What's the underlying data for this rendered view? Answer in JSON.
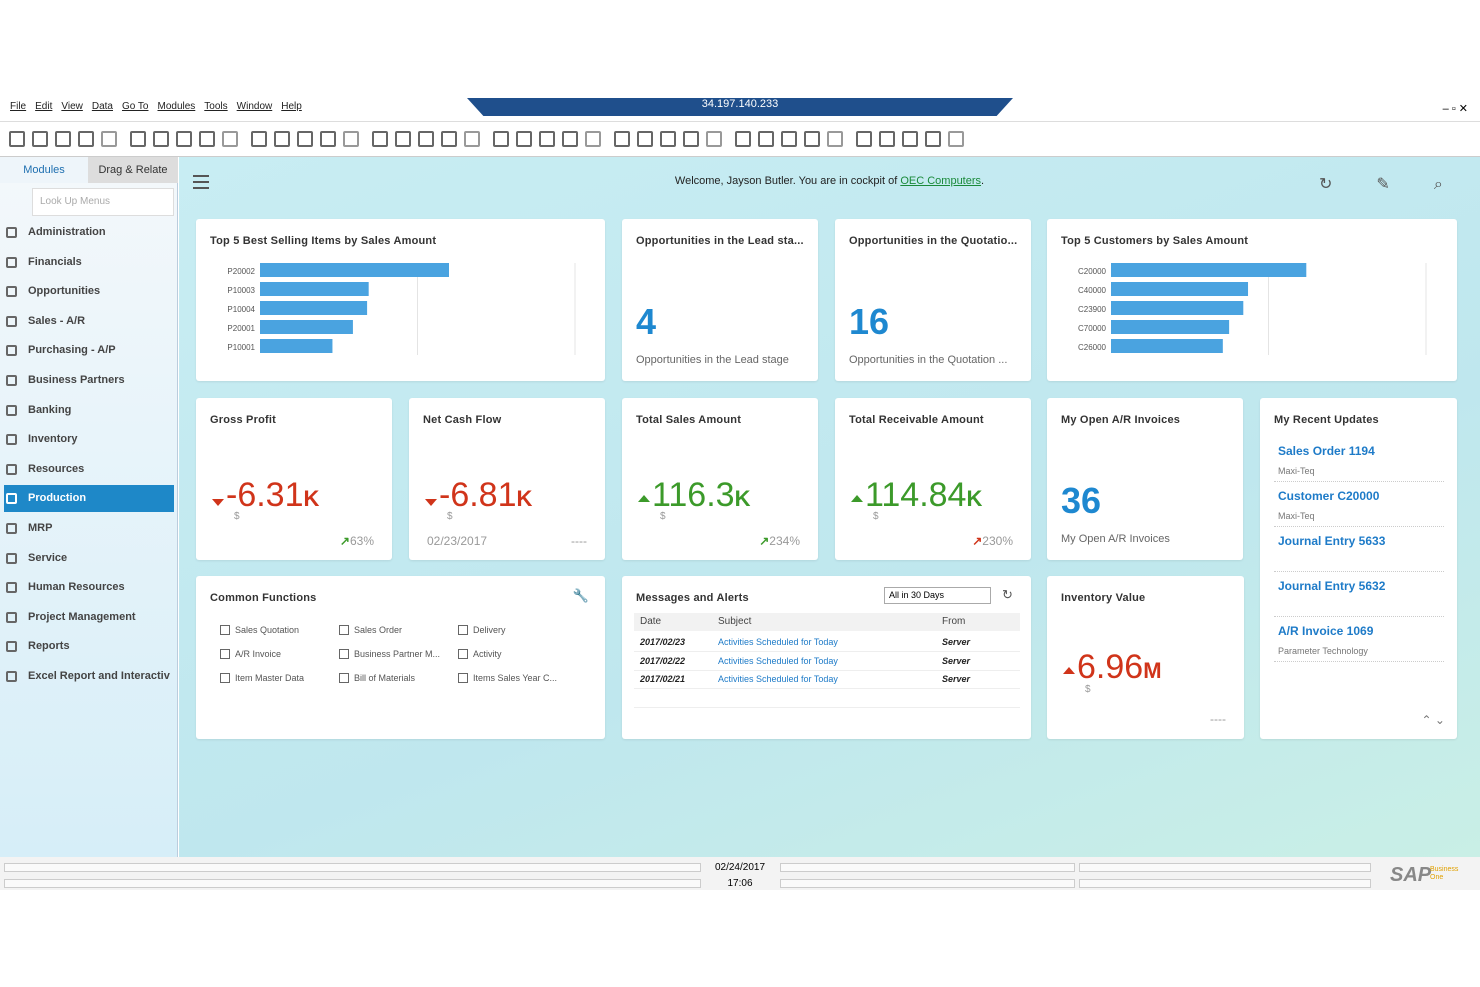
{
  "menu": [
    "File",
    "Edit",
    "View",
    "Data",
    "Go To",
    "Modules",
    "Tools",
    "Window",
    "Help"
  ],
  "title_bar": "34.197.140.233",
  "sidebar": {
    "tabs": [
      "Modules",
      "Drag & Relate"
    ],
    "search_placeholder": "Look Up Menus",
    "modules": [
      "Administration",
      "Financials",
      "Opportunities",
      "Sales - A/R",
      "Purchasing - A/P",
      "Business Partners",
      "Banking",
      "Inventory",
      "Resources",
      "Production",
      "MRP",
      "Service",
      "Human Resources",
      "Project Management",
      "Reports",
      "Excel Report and Interactiv"
    ],
    "selected_index": 9
  },
  "welcome": {
    "text": "Welcome, Jayson Butler. You are in cockpit of ",
    "link": "OEC Computers",
    "suffix": "."
  },
  "chart_data": [
    {
      "type": "bar",
      "orientation": "horizontal",
      "title": "Top 5 Best Selling Items by Sales Amount",
      "categories": [
        "P20002",
        "P10003",
        "P10004",
        "P20001",
        "P10001"
      ],
      "values": [
        1.2,
        0.69,
        0.68,
        0.59,
        0.46
      ],
      "xlim": [
        0,
        2
      ],
      "xgrid": [
        1,
        2
      ],
      "color": "#4aa3e0"
    },
    {
      "type": "bar",
      "orientation": "horizontal",
      "title": "Top 5 Customers by Sales Amount",
      "categories": [
        "C20000",
        "C40000",
        "C23900",
        "C70000",
        "C26000"
      ],
      "values": [
        1.24,
        0.87,
        0.84,
        0.75,
        0.71
      ],
      "xlim": [
        0,
        2
      ],
      "xgrid": [
        1,
        2
      ],
      "color": "#4aa3e0"
    }
  ],
  "count_tiles": [
    {
      "title": "Opportunities in the Lead sta...",
      "value": "4",
      "caption": "Opportunities in the Lead stage"
    },
    {
      "title": "Opportunities in the Quotatio...",
      "value": "16",
      "caption": "Opportunities in the Quotation ..."
    },
    {
      "title": "My Open A/R Invoices",
      "value": "36",
      "caption": "My Open A/R Invoices"
    }
  ],
  "kpi_tiles": [
    {
      "title": "Gross Profit",
      "value": "-6.31",
      "unit": "K",
      "currency": "$",
      "trend": "down",
      "color": "#d0341a",
      "right": "63%",
      "right_arrow": "#3c9a2a"
    },
    {
      "title": "Net Cash Flow",
      "value": "-6.81",
      "unit": "K",
      "currency": "$",
      "trend": "down",
      "color": "#d0341a",
      "left": "02/23/2017",
      "right": "----"
    },
    {
      "title": "Total Sales Amount",
      "value": "116.3",
      "unit": "K",
      "currency": "$",
      "trend": "up",
      "color": "#3c9a2a",
      "right": "234%",
      "right_arrow": "#3c9a2a"
    },
    {
      "title": "Total Receivable Amount",
      "value": "114.84",
      "unit": "K",
      "currency": "$",
      "trend": "up",
      "color": "#3c9a2a",
      "right": "230%",
      "right_arrow": "#d0341a"
    },
    {
      "title": "Inventory Value",
      "value": "6.96",
      "unit": "M",
      "currency": "$",
      "trend": "up",
      "color": "#d0341a",
      "right": "----"
    }
  ],
  "recent_updates": {
    "title": "My Recent Updates",
    "items": [
      {
        "title": "Sales Order 1194",
        "sub": "Maxi-Teq"
      },
      {
        "title": "Customer C20000",
        "sub": "Maxi-Teq"
      },
      {
        "title": "Journal Entry 5633"
      },
      {
        "title": "Journal Entry 5632"
      },
      {
        "title": "A/R Invoice 1069",
        "sub": "Parameter Technology"
      }
    ]
  },
  "common_functions": {
    "title": "Common Functions",
    "items": [
      "Sales Quotation",
      "Sales Order",
      "Delivery",
      "A/R Invoice",
      "Business Partner M...",
      "Activity",
      "Item Master Data",
      "Bill of Materials",
      "Items Sales Year C..."
    ]
  },
  "messages": {
    "title": "Messages and Alerts",
    "filter": "All in 30 Days",
    "headers": [
      "Date",
      "Subject",
      "From"
    ],
    "rows": [
      [
        "2017/02/23",
        "Activities Scheduled for Today",
        "Server"
      ],
      [
        "2017/02/22",
        "Activities Scheduled for Today",
        "Server"
      ],
      [
        "2017/02/21",
        "Activities Scheduled for Today",
        "Server"
      ]
    ]
  },
  "status": {
    "date": "02/24/2017",
    "time": "17:06",
    "logo": "SAP",
    "logo_sub": "Business One"
  }
}
